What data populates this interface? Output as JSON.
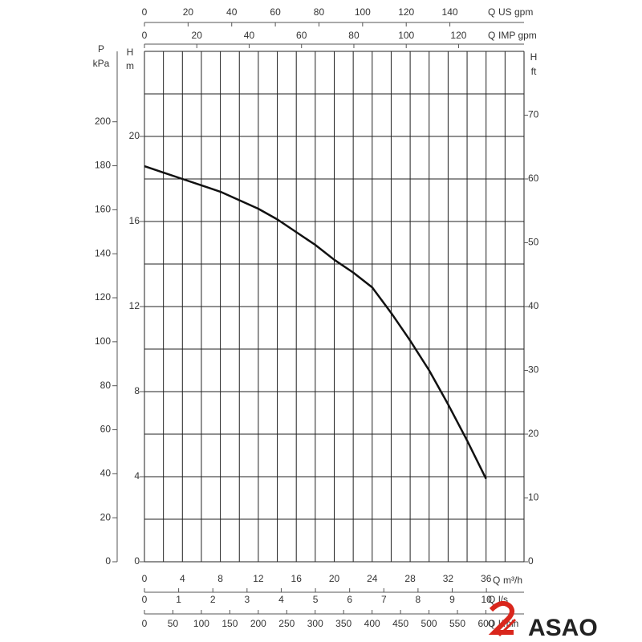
{
  "chart_data": {
    "type": "line",
    "x": [
      0,
      2,
      4,
      6,
      8,
      10,
      12,
      14,
      16,
      18,
      20,
      22,
      24,
      26,
      28,
      30,
      32,
      34,
      36
    ],
    "series": [
      {
        "color": "#111111",
        "values": [
          18.6,
          18.3,
          18.0,
          17.7,
          17.4,
          17.0,
          16.6,
          16.1,
          15.5,
          14.9,
          14.2,
          13.6,
          12.9,
          11.7,
          10.4,
          9.0,
          7.4,
          5.7,
          3.9
        ]
      }
    ],
    "x_name": "Q",
    "x_unit": "m³/h",
    "xlim": [
      0,
      40
    ],
    "xticks": [
      0,
      4,
      8,
      12,
      16,
      20,
      24,
      28,
      32,
      36
    ],
    "xgrid": [
      0,
      2,
      4,
      6,
      8,
      10,
      12,
      14,
      16,
      18,
      20,
      22,
      24,
      26,
      28,
      30,
      32,
      34,
      36,
      38,
      40
    ],
    "y_name": "H",
    "y_unit": "m",
    "ylim": [
      0,
      24
    ],
    "yticks": [
      0,
      4,
      8,
      12,
      16,
      20
    ],
    "ygrid": [
      0,
      2,
      4,
      6,
      8,
      10,
      12,
      14,
      16,
      18,
      20,
      22,
      24
    ],
    "y2_name": "H",
    "y2_unit": "ft",
    "y2lim": [
      0,
      80
    ],
    "y2ticks": [
      0,
      10,
      20,
      30,
      40,
      50,
      60,
      70
    ],
    "y3_name": "P",
    "y3_unit": "kPa",
    "y3lim": [
      0,
      232
    ],
    "y3ticks": [
      0,
      20,
      40,
      60,
      80,
      100,
      120,
      140,
      160,
      180,
      200
    ],
    "extra_x_axes": [
      {
        "name": "Q",
        "unit": "US gpm",
        "lim": [
          0,
          174
        ],
        "ticks": [
          0,
          20,
          40,
          60,
          80,
          100,
          120,
          140
        ]
      },
      {
        "name": "Q",
        "unit": "IMP gpm",
        "lim": [
          0,
          145
        ],
        "ticks": [
          0,
          20,
          40,
          60,
          80,
          100,
          120
        ]
      },
      {
        "name": "Q",
        "unit": "l/s",
        "lim": [
          0,
          11.1
        ],
        "ticks": [
          0,
          1,
          2,
          3,
          4,
          5,
          6,
          7,
          8,
          9,
          10
        ]
      },
      {
        "name": "Q",
        "unit": "l/min",
        "lim": [
          0,
          667
        ],
        "ticks": [
          0,
          50,
          100,
          150,
          200,
          250,
          300,
          350,
          400,
          450,
          500,
          550,
          600
        ]
      }
    ]
  },
  "logo": "ASAO"
}
